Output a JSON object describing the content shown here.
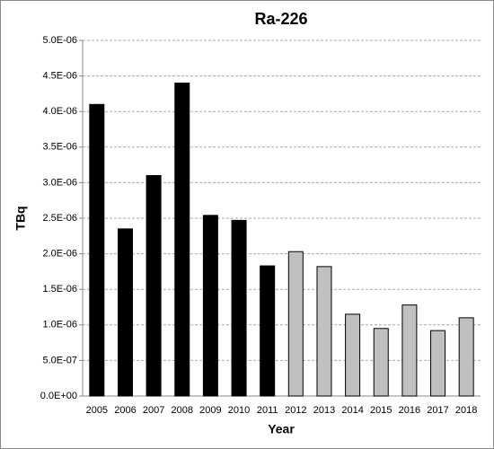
{
  "chart_data": {
    "type": "bar",
    "title": "Ra-226",
    "x_label": "Year",
    "y_label": "TBq",
    "categories": [
      "2005",
      "2006",
      "2007",
      "2008",
      "2009",
      "2010",
      "2011",
      "2012",
      "2013",
      "2014",
      "2015",
      "2016",
      "2017",
      "2018"
    ],
    "values": [
      4.1e-06,
      2.35e-06,
      3.1e-06,
      4.4e-06,
      2.54e-06,
      2.47e-06,
      1.83e-06,
      2.03e-06,
      1.82e-06,
      1.15e-06,
      9.5e-07,
      1.28e-06,
      9.2e-07,
      1.1e-06
    ],
    "colors": [
      "#000000",
      "#000000",
      "#000000",
      "#000000",
      "#000000",
      "#000000",
      "#000000",
      "#c0c0c0",
      "#c0c0c0",
      "#c0c0c0",
      "#c0c0c0",
      "#c0c0c0",
      "#c0c0c0",
      "#c0c0c0"
    ],
    "ylim": [
      0,
      5e-06
    ],
    "yticks": [
      {
        "value": 0,
        "label": "0.0E+00"
      },
      {
        "value": 5e-07,
        "label": "5.0E-07"
      },
      {
        "value": 1e-06,
        "label": "1.0E-06"
      },
      {
        "value": 1.5e-06,
        "label": "1.5E-06"
      },
      {
        "value": 2e-06,
        "label": "2.0E-06"
      },
      {
        "value": 2.5e-06,
        "label": "2.5E-06"
      },
      {
        "value": 3e-06,
        "label": "3.0E-06"
      },
      {
        "value": 3.5e-06,
        "label": "3.5E-06"
      },
      {
        "value": 4e-06,
        "label": "4.0E-06"
      },
      {
        "value": 4.5e-06,
        "label": "4.5E-06"
      },
      {
        "value": 5e-06,
        "label": "5.0E-06"
      }
    ],
    "grid": true
  }
}
